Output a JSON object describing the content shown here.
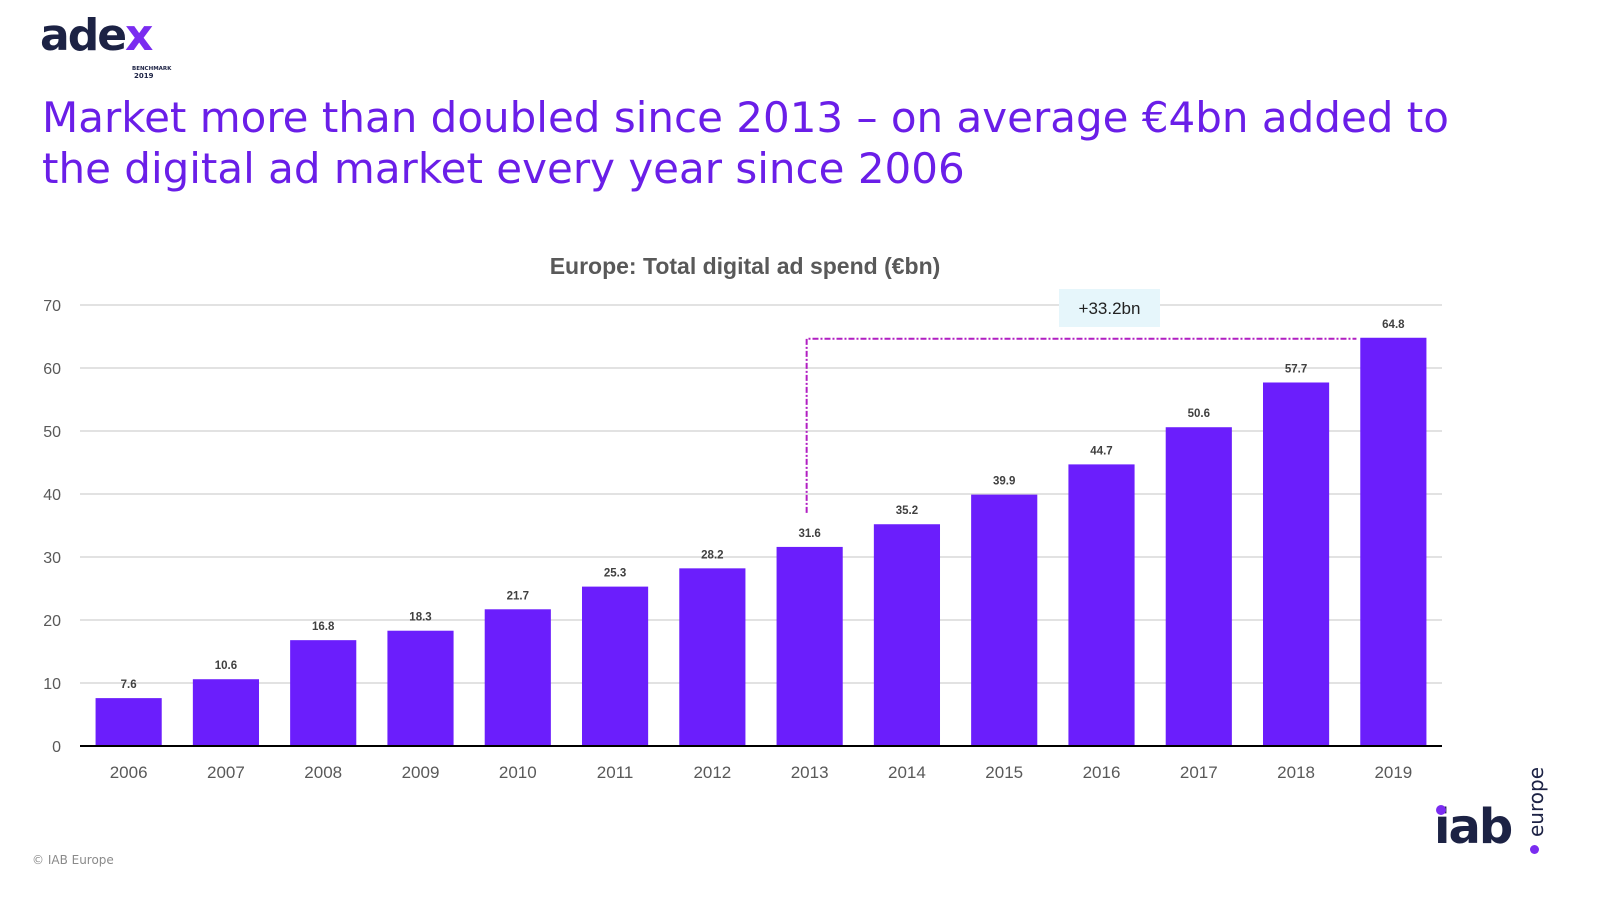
{
  "logo": {
    "word_main": "ade",
    "word_accent": "x",
    "subtitle": "BENCHMARK",
    "year": "2019"
  },
  "headline": "Market more than doubled since 2013 – on average €4bn added to the digital ad market every year since 2006",
  "chart_data": {
    "type": "bar",
    "title": "Europe: Total digital ad spend (€bn)",
    "categories": [
      "2006",
      "2007",
      "2008",
      "2009",
      "2010",
      "2011",
      "2012",
      "2013",
      "2014",
      "2015",
      "2016",
      "2017",
      "2018",
      "2019"
    ],
    "values": [
      7.6,
      10.6,
      16.8,
      18.3,
      21.7,
      25.3,
      28.2,
      31.6,
      35.2,
      39.9,
      44.7,
      50.6,
      57.7,
      64.8
    ],
    "value_labels": [
      "7.6",
      "10.6",
      "16.8",
      "18.3",
      "21.7",
      "25.3",
      "28.2",
      "31.6",
      "35.2",
      "39.9",
      "44.7",
      "50.6",
      "57.7",
      "64.8"
    ],
    "yticks": [
      "0",
      "10",
      "20",
      "30",
      "40",
      "50",
      "60",
      "70"
    ],
    "ylim": [
      0,
      70
    ],
    "xlabel": "",
    "ylabel": "",
    "grid": true,
    "annotation": {
      "label": "+33.2bn",
      "from_category": "2013",
      "to_category": "2019"
    }
  },
  "colors": {
    "bar": "#6b1efc",
    "title": "#6a1ee8",
    "connector": "#b11fc2",
    "annotation_bg": "#e6f6fb",
    "axis": "#000000",
    "grid": "#d0d0d0"
  },
  "footer": {
    "copyright": "© IAB Europe"
  },
  "brand": {
    "iab_word": "iab",
    "iab_sub": "europe"
  }
}
